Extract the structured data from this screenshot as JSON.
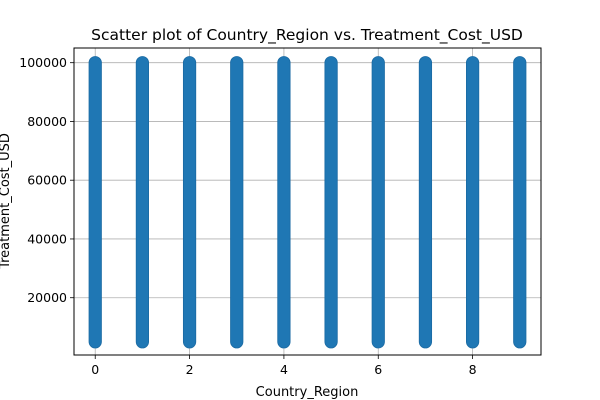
{
  "chart_data": {
    "type": "scatter",
    "title": "Scatter plot of Country_Region vs. Treatment_Cost_USD",
    "xlabel": "Country_Region",
    "ylabel": "Treatment_Cost_USD",
    "xlim": [
      -0.45,
      9.45
    ],
    "ylim": [
      500,
      105000
    ],
    "x_ticks": [
      0,
      2,
      4,
      6,
      8
    ],
    "y_ticks": [
      20000,
      40000,
      60000,
      80000,
      100000
    ],
    "grid": true,
    "marker_color": "#1f77b4",
    "series": [
      {
        "x": 0,
        "y_min": 5000,
        "y_max": 100000
      },
      {
        "x": 1,
        "y_min": 5000,
        "y_max": 100000
      },
      {
        "x": 2,
        "y_min": 5000,
        "y_max": 100000
      },
      {
        "x": 3,
        "y_min": 5000,
        "y_max": 100000
      },
      {
        "x": 4,
        "y_min": 5000,
        "y_max": 100000
      },
      {
        "x": 5,
        "y_min": 5000,
        "y_max": 100000
      },
      {
        "x": 6,
        "y_min": 5000,
        "y_max": 100000
      },
      {
        "x": 7,
        "y_min": 5000,
        "y_max": 100000
      },
      {
        "x": 8,
        "y_min": 5000,
        "y_max": 100000
      },
      {
        "x": 9,
        "y_min": 5000,
        "y_max": 100000
      }
    ]
  }
}
